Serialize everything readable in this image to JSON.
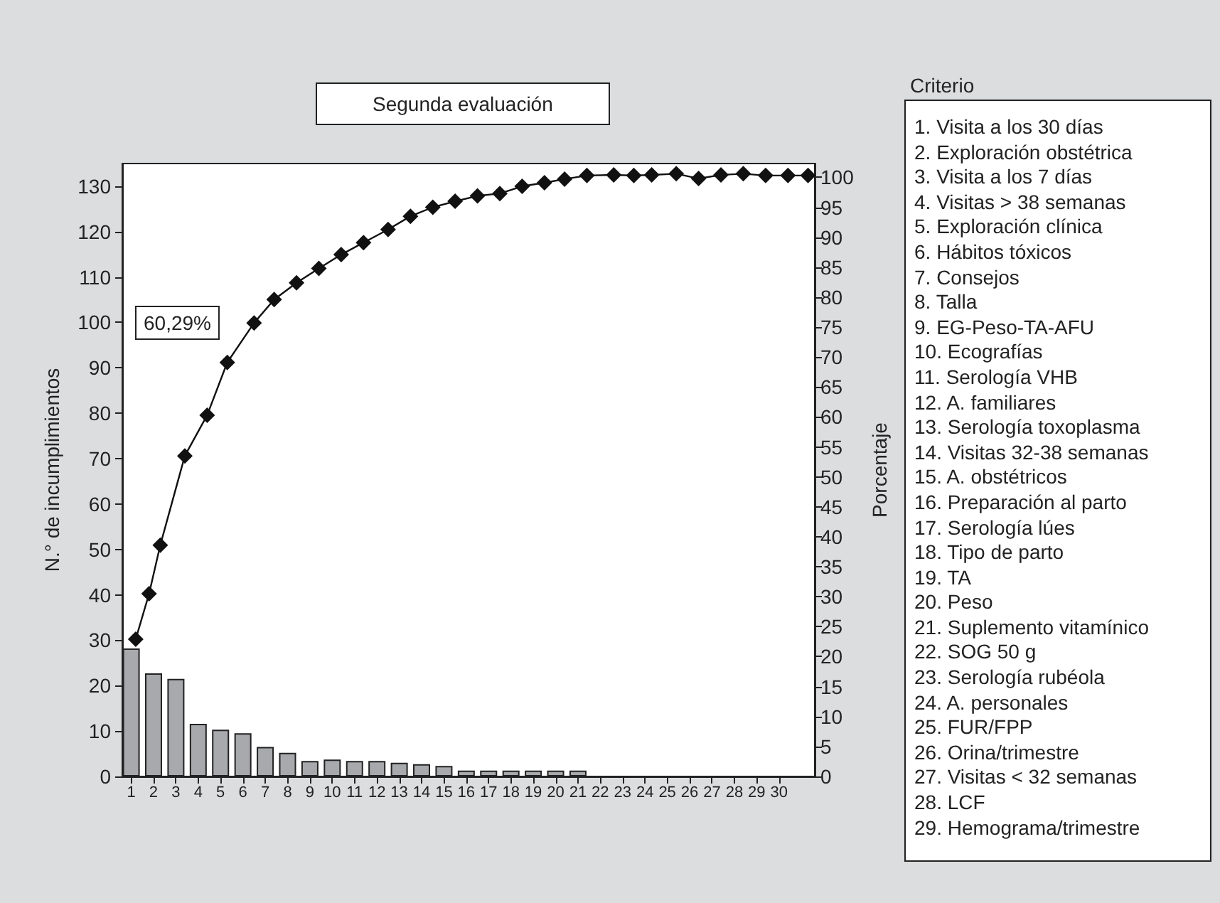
{
  "chart_data": {
    "type": "bar",
    "title": "Segunda evaluación",
    "ylabel": "N.° de incumplimientos",
    "y2label": "Porcentaje",
    "xlim": [
      0.6,
      31.6
    ],
    "xticks": [
      1,
      2,
      3,
      4,
      5,
      6,
      7,
      8,
      9,
      10,
      11,
      12,
      13,
      14,
      15,
      16,
      17,
      18,
      19,
      20,
      21,
      22,
      23,
      24,
      25,
      26,
      27,
      28,
      29,
      30
    ],
    "ylim": [
      0,
      135
    ],
    "yticks": [
      0,
      10,
      20,
      30,
      40,
      50,
      60,
      70,
      80,
      90,
      100,
      110,
      120,
      130
    ],
    "y2lim": [
      0,
      102.3
    ],
    "y2ticks": [
      0,
      5,
      10,
      15,
      20,
      25,
      30,
      35,
      40,
      45,
      50,
      55,
      60,
      65,
      70,
      75,
      80,
      85,
      90,
      95,
      100
    ],
    "grid": false,
    "marker": "diamond",
    "series": [
      {
        "color": "#a7a9ac",
        "x": [
          1,
          2,
          3,
          4,
          5,
          6,
          7,
          8,
          9,
          10,
          11,
          12,
          13,
          14,
          15,
          16,
          17,
          18,
          19,
          20,
          21
        ],
        "values": [
          28.2,
          22.7,
          21.5,
          11.6,
          10.3,
          9.5,
          6.5,
          5.2,
          3.4,
          3.7,
          3.4,
          3.4,
          3.0,
          2.7,
          2.3,
          1.3,
          1.3,
          1.3,
          1.3,
          1.3,
          1.3
        ]
      },
      {
        "type": "line",
        "axis": "y2",
        "color": "#111111",
        "x": [
          1.2,
          1.8,
          2.3,
          3.4,
          4.4,
          5.3,
          6.5,
          7.4,
          8.4,
          9.4,
          10.4,
          11.4,
          12.5,
          13.5,
          14.5,
          15.5,
          16.5,
          17.5,
          18.5,
          19.5,
          20.4,
          21.4,
          22.6,
          23.5,
          24.3,
          25.4,
          26.4,
          27.4,
          28.4,
          29.4,
          30.4,
          31.3
        ],
        "values": [
          22.9,
          30.5,
          38.6,
          53.5,
          60.3,
          69.1,
          75.7,
          79.6,
          82.4,
          84.8,
          87.1,
          89.1,
          91.3,
          93.5,
          95.0,
          96.0,
          96.9,
          97.3,
          98.5,
          99.1,
          99.7,
          100.3,
          100.4,
          100.3,
          100.4,
          100.6,
          99.8,
          100.4,
          100.6,
          100.3,
          100.3,
          100.3
        ]
      }
    ],
    "annotations": [
      "60,29%",
      "Criterio",
      "1. Visita a los 30 días",
      "2. Exploración obstétrica",
      "3. Visita a los 7 días",
      "4. Visitas > 38 semanas",
      "5. Exploración clínica",
      "6. Hábitos tóxicos",
      "7. Consejos",
      "8. Talla",
      "9. EG-Peso-TA-AFU",
      "10. Ecografías",
      "11. Serología VHB",
      "12. A. familiares",
      "13. Serología toxoplasma",
      "14. Visitas 32-38 semanas",
      "15. A. obstétricos",
      "16. Preparación al parto",
      "17. Serología lúes",
      "18. Tipo de parto",
      "19. TA",
      "20. Peso",
      "21. Suplemento vitamínico",
      "22. SOG 50 g",
      "23. Serología rubéola",
      "24. A. personales",
      "25. FUR/FPP",
      "26. Orina/trimestre",
      "27. Visitas < 32 semanas",
      "28. LCF",
      "29. Hemograma/trimestre"
    ]
  }
}
